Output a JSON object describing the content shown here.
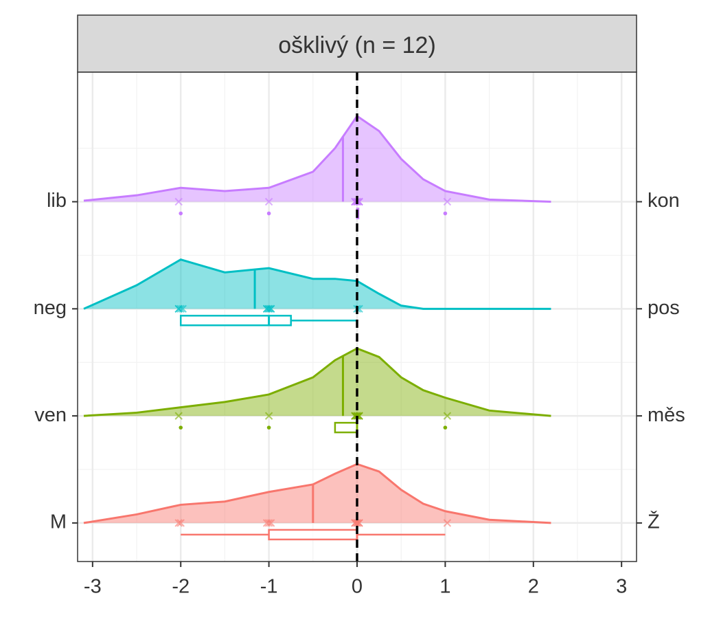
{
  "chart_data": {
    "type": "ridgeline",
    "title": "ošklivý (n = 12)",
    "categories": [
      "M",
      "ven",
      "neg",
      "lib"
    ],
    "right_categories": [
      "Ž",
      "měs",
      "pos",
      "kon"
    ],
    "xlim": [
      -3.17,
      3.17
    ],
    "xticks": [
      -3,
      -2,
      -1,
      0,
      1,
      2,
      3
    ],
    "ylim": [
      0.64,
      5.21
    ],
    "grid": true,
    "ref_line": 0,
    "density_x": [
      -3.1,
      -2.5,
      -2,
      -1.5,
      -1,
      -0.5,
      -0.25,
      0,
      0.25,
      0.5,
      0.75,
      1,
      1.5,
      2.2
    ],
    "groups": [
      {
        "color": "#F8766D",
        "density": [
          0.0,
          0.08,
          0.17,
          0.2,
          0.29,
          0.36,
          0.46,
          0.55,
          0.48,
          0.31,
          0.18,
          0.11,
          0.03,
          0.0
        ],
        "mean": -0.5,
        "points": [
          -2,
          -2,
          -1,
          -1,
          -1,
          0,
          0,
          0,
          0,
          0,
          0,
          1
        ],
        "box": {
          "lower": -2,
          "q1": -1,
          "median": 0,
          "q3": 0,
          "upper": 1,
          "outliers": []
        }
      },
      {
        "color": "#7CAE00",
        "density": [
          0.0,
          0.03,
          0.08,
          0.13,
          0.2,
          0.36,
          0.52,
          0.63,
          0.55,
          0.36,
          0.24,
          0.17,
          0.05,
          0.0
        ],
        "mean": -0.16,
        "points": [
          -2,
          -1,
          0,
          0,
          0,
          0,
          0,
          0,
          0,
          0,
          0,
          1
        ],
        "box": {
          "lower": -0.25,
          "q1": -0.25,
          "median": 0,
          "q3": 0,
          "upper": 0,
          "outliers": [
            -2,
            -1,
            1
          ]
        }
      },
      {
        "color": "#00BFC4",
        "density": [
          0.0,
          0.22,
          0.46,
          0.34,
          0.38,
          0.28,
          0.28,
          0.26,
          0.14,
          0.03,
          0.0,
          0.0,
          0.0,
          0.0
        ],
        "mean": -1.16,
        "points": [
          -2,
          -2,
          -2,
          -2,
          -1,
          -1,
          -1,
          -1,
          -1,
          -1,
          0,
          0
        ],
        "box": {
          "lower": -2,
          "q1": -2,
          "median": -1,
          "q3": -0.75,
          "upper": 0,
          "outliers": []
        }
      },
      {
        "color": "#C77CFF",
        "density": [
          0.01,
          0.06,
          0.13,
          0.1,
          0.13,
          0.28,
          0.5,
          0.8,
          0.66,
          0.4,
          0.21,
          0.1,
          0.02,
          0.0
        ],
        "mean": -0.16,
        "points": [
          -2,
          -1,
          0,
          0,
          0,
          0,
          0,
          0,
          0,
          0,
          0,
          1
        ],
        "box": {
          "lower": 0,
          "q1": 0,
          "median": 0,
          "q3": 0,
          "upper": 0,
          "outliers": [
            -2,
            -1,
            1
          ]
        }
      }
    ]
  }
}
